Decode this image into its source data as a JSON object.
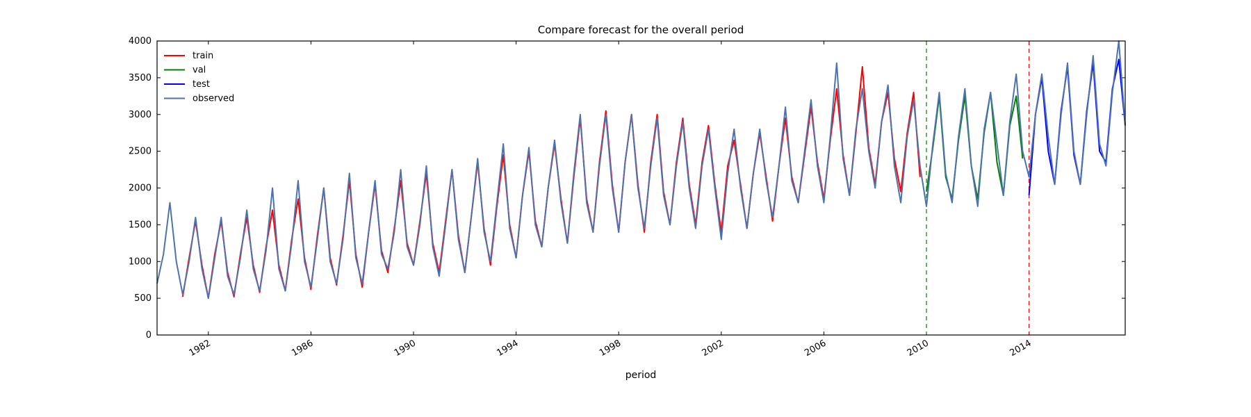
{
  "chart_data": {
    "type": "line",
    "title": "Compare forecast for the overall period",
    "x_label": "period",
    "xlim": [
      1980,
      2017.75
    ],
    "ylim": [
      0,
      4000
    ],
    "xticks": [
      1982,
      1986,
      1990,
      1994,
      1998,
      2002,
      2006,
      2010,
      2014
    ],
    "yticks": [
      0,
      500,
      1000,
      1500,
      2000,
      2500,
      3000,
      3500,
      4000
    ],
    "legend": "upper left",
    "vlines": [
      {
        "x": 2010,
        "color": "#008000"
      },
      {
        "x": 2014,
        "color": "#ff0000"
      }
    ],
    "series": [
      {
        "name": "train",
        "color": "#ff0000",
        "x": [
          1981,
          1981.25,
          1981.5,
          1981.75,
          1982,
          1982.25,
          1982.5,
          1982.75,
          1983,
          1983.25,
          1983.5,
          1983.75,
          1984,
          1984.25,
          1984.5,
          1984.75,
          1985,
          1985.25,
          1985.5,
          1985.75,
          1986,
          1986.25,
          1986.5,
          1986.75,
          1987,
          1987.25,
          1987.5,
          1987.75,
          1988,
          1988.25,
          1988.5,
          1988.75,
          1989,
          1989.25,
          1989.5,
          1989.75,
          1990,
          1990.25,
          1990.5,
          1990.75,
          1991,
          1991.25,
          1991.5,
          1991.75,
          1992,
          1992.25,
          1992.5,
          1992.75,
          1993,
          1993.25,
          1993.5,
          1993.75,
          1994,
          1994.25,
          1994.5,
          1994.75,
          1995,
          1995.25,
          1995.5,
          1995.75,
          1996,
          1996.25,
          1996.5,
          1996.75,
          1997,
          1997.25,
          1997.5,
          1997.75,
          1998,
          1998.25,
          1998.5,
          1998.75,
          1999,
          1999.25,
          1999.5,
          1999.75,
          2000,
          2000.25,
          2000.5,
          2000.75,
          2001,
          2001.25,
          2001.5,
          2001.75,
          2002,
          2002.25,
          2002.5,
          2002.75,
          2003,
          2003.25,
          2003.5,
          2003.75,
          2004,
          2004.25,
          2004.5,
          2004.75,
          2005,
          2005.25,
          2005.5,
          2005.75,
          2006,
          2006.25,
          2006.5,
          2006.75,
          2007,
          2007.25,
          2007.5,
          2007.75,
          2008,
          2008.25,
          2008.5,
          2008.75,
          2009,
          2009.25,
          2009.5,
          2009.75
        ],
        "values": [
          520,
          1050,
          1550,
          950,
          500,
          1100,
          1550,
          850,
          520,
          1100,
          1600,
          950,
          580,
          1200,
          1700,
          950,
          600,
          1300,
          1850,
          1050,
          620,
          1350,
          2000,
          1050,
          680,
          1350,
          2100,
          1100,
          650,
          1400,
          2050,
          1150,
          850,
          1450,
          2100,
          1250,
          950,
          1550,
          2200,
          1250,
          850,
          1550,
          2250,
          1350,
          850,
          1600,
          2350,
          1450,
          950,
          1750,
          2450,
          1500,
          1050,
          1900,
          2500,
          1550,
          1200,
          2000,
          2600,
          1850,
          1250,
          2150,
          2950,
          1850,
          1400,
          2350,
          3050,
          2050,
          1400,
          2350,
          3000,
          2050,
          1400,
          2350,
          3000,
          1950,
          1500,
          2350,
          2950,
          2050,
          1500,
          2350,
          2850,
          2050,
          1400,
          2300,
          2650,
          2050,
          1450,
          2200,
          2750,
          2150,
          1550,
          2300,
          2950,
          2150,
          1800,
          2450,
          3100,
          2350,
          1850,
          2650,
          3350,
          2450,
          1900,
          2750,
          3650,
          2550,
          2050,
          2900,
          3300,
          2400,
          1950,
          2750,
          3300,
          2150
        ]
      },
      {
        "name": "val",
        "color": "#008000",
        "x": [
          2010,
          2010.25,
          2010.5,
          2010.75,
          2011,
          2011.25,
          2011.5,
          2011.75,
          2012,
          2012.25,
          2012.5,
          2012.75,
          2013,
          2013.25,
          2013.5,
          2013.75
        ],
        "values": [
          1950,
          2550,
          3250,
          2150,
          1850,
          2650,
          3250,
          2300,
          1850,
          2750,
          3300,
          2350,
          1900,
          2850,
          3250,
          2400
        ]
      },
      {
        "name": "test",
        "color": "#0000ff",
        "x": [
          2014,
          2014.25,
          2014.5,
          2014.75,
          2015,
          2015.25,
          2015.5,
          2015.75,
          2016,
          2016.25,
          2016.5,
          2016.75,
          2017,
          2017.25,
          2017.5,
          2017.75
        ],
        "values": [
          1900,
          3000,
          3500,
          2500,
          2050,
          3050,
          3650,
          2450,
          2050,
          3050,
          3700,
          2500,
          2350,
          3350,
          3750,
          2850
        ]
      },
      {
        "name": "observed",
        "color": "#4c72b0",
        "x": [
          1980,
          1980.25,
          1980.5,
          1980.75,
          1981,
          1981.25,
          1981.5,
          1981.75,
          1982,
          1982.25,
          1982.5,
          1982.75,
          1983,
          1983.25,
          1983.5,
          1983.75,
          1984,
          1984.25,
          1984.5,
          1984.75,
          1985,
          1985.25,
          1985.5,
          1985.75,
          1986,
          1986.25,
          1986.5,
          1986.75,
          1987,
          1987.25,
          1987.5,
          1987.75,
          1988,
          1988.25,
          1988.5,
          1988.75,
          1989,
          1989.25,
          1989.5,
          1989.75,
          1990,
          1990.25,
          1990.5,
          1990.75,
          1991,
          1991.25,
          1991.5,
          1991.75,
          1992,
          1992.25,
          1992.5,
          1992.75,
          1993,
          1993.25,
          1993.5,
          1993.75,
          1994,
          1994.25,
          1994.5,
          1994.75,
          1995,
          1995.25,
          1995.5,
          1995.75,
          1996,
          1996.25,
          1996.5,
          1996.75,
          1997,
          1997.25,
          1997.5,
          1997.75,
          1998,
          1998.25,
          1998.5,
          1998.75,
          1999,
          1999.25,
          1999.5,
          1999.75,
          2000,
          2000.25,
          2000.5,
          2000.75,
          2001,
          2001.25,
          2001.5,
          2001.75,
          2002,
          2002.25,
          2002.5,
          2002.75,
          2003,
          2003.25,
          2003.5,
          2003.75,
          2004,
          2004.25,
          2004.5,
          2004.75,
          2005,
          2005.25,
          2005.5,
          2005.75,
          2006,
          2006.25,
          2006.5,
          2006.75,
          2007,
          2007.25,
          2007.5,
          2007.75,
          2008,
          2008.25,
          2008.5,
          2008.75,
          2009,
          2009.25,
          2009.5,
          2009.75,
          2010,
          2010.25,
          2010.5,
          2010.75,
          2011,
          2011.25,
          2011.5,
          2011.75,
          2012,
          2012.25,
          2012.5,
          2012.75,
          2013,
          2013.25,
          2013.5,
          2013.75,
          2014,
          2014.25,
          2014.5,
          2014.75,
          2015,
          2015.25,
          2015.5,
          2015.75,
          2016,
          2016.25,
          2016.5,
          2016.75,
          2017,
          2017.25,
          2017.5,
          2017.75
        ],
        "values": [
          700,
          1100,
          1800,
          1000,
          550,
          1000,
          1600,
          900,
          500,
          1050,
          1600,
          800,
          550,
          1050,
          1700,
          900,
          600,
          1150,
          2000,
          900,
          600,
          1250,
          2100,
          1000,
          650,
          1300,
          2000,
          1000,
          700,
          1300,
          2200,
          1050,
          700,
          1400,
          2100,
          1100,
          900,
          1400,
          2250,
          1200,
          950,
          1500,
          2300,
          1200,
          800,
          1500,
          2250,
          1300,
          850,
          1600,
          2400,
          1400,
          1000,
          1800,
          2600,
          1450,
          1050,
          1900,
          2550,
          1500,
          1200,
          2000,
          2650,
          1800,
          1250,
          2200,
          3000,
          1800,
          1400,
          2300,
          3000,
          2000,
          1400,
          2350,
          3000,
          2000,
          1450,
          2300,
          2950,
          1900,
          1500,
          2300,
          2900,
          2000,
          1450,
          2300,
          2800,
          2000,
          1300,
          2200,
          2800,
          2000,
          1450,
          2200,
          2800,
          2100,
          1600,
          2300,
          3100,
          2100,
          1800,
          2500,
          3200,
          2300,
          1800,
          2700,
          3700,
          2400,
          1900,
          2800,
          3350,
          2500,
          2000,
          2900,
          3400,
          2300,
          1800,
          2700,
          3200,
          2300,
          1750,
          2600,
          3300,
          2200,
          1800,
          2700,
          3350,
          2300,
          1750,
          2800,
          3300,
          2600,
          1900,
          2900,
          3550,
          2500,
          2150,
          3000,
          3550,
          2700,
          2050,
          3000,
          3700,
          2500,
          2050,
          3000,
          3800,
          2600,
          2300,
          3300,
          4000,
          2850
        ]
      }
    ]
  }
}
